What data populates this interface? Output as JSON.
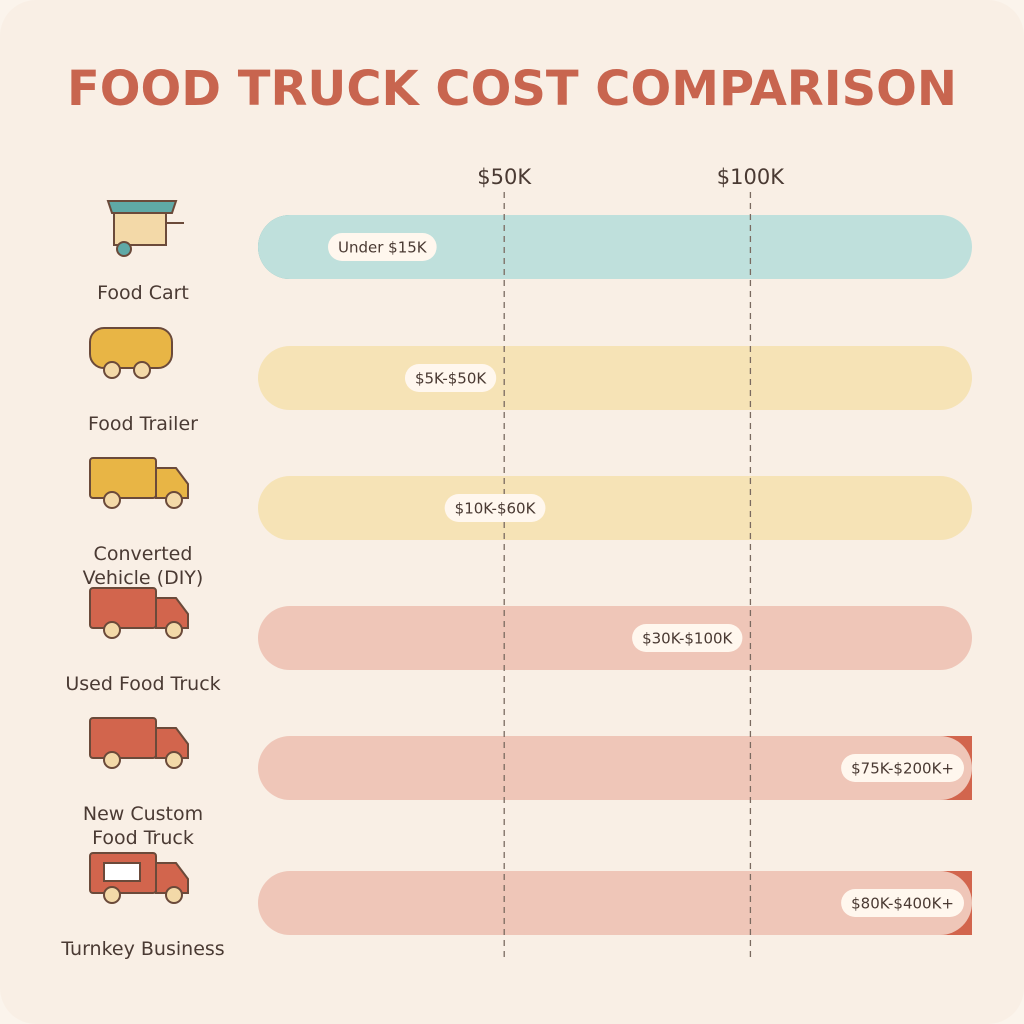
{
  "chart_data": {
    "type": "range-bar",
    "title": "FOOD TRUCK COST COMPARISON",
    "categories": [
      "Food Cart",
      "Food Trailer",
      "Converted Vehicle (DIY)",
      "Used Food Truck",
      "New Custom Food Truck",
      "Turnkey Business"
    ],
    "ranges": [
      [
        0,
        15000
      ],
      [
        5000,
        50000
      ],
      [
        10000,
        60000
      ],
      [
        30000,
        100000
      ],
      [
        75000,
        200000
      ],
      [
        80000,
        400000
      ]
    ],
    "value_labels": [
      "Under $15K",
      "$5K-$50K",
      "$10K-$60K",
      "$30K-$100K",
      "$75K-$200K+",
      "$80K-$400K+"
    ],
    "colors": [
      "#5fa9a6",
      "#e8b545",
      "#e8b545",
      "#d2654d",
      "#d2654d",
      "#d2654d"
    ],
    "track_colors": [
      "#bfe0dc",
      "#f6e3b6",
      "#f6e3b6",
      "#efc6b8",
      "#efc6b8",
      "#efc6b8"
    ],
    "xlim": [
      0,
      145000
    ],
    "xticks": [
      {
        "value": 50000,
        "label": "$50K"
      },
      {
        "value": 100000,
        "label": "$100K"
      }
    ],
    "grid": true
  }
}
